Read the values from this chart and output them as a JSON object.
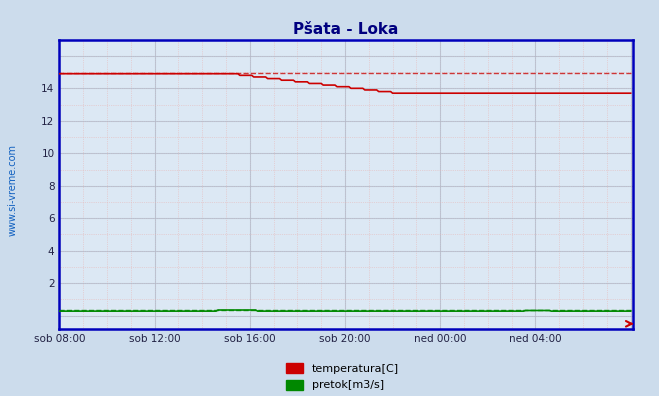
{
  "title": "Pšata - Loka",
  "title_color": "#000080",
  "bg_color": "#ccdcec",
  "plot_bg_color": "#dce8f4",
  "grid_color_v_minor": "#e8b8b8",
  "grid_color_h_minor": "#e8b8b8",
  "grid_color_major": "#b0b8c8",
  "xlabel_ticks": [
    "sob 08:00",
    "sob 12:00",
    "sob 16:00",
    "sob 20:00",
    "ned 00:00",
    "ned 04:00"
  ],
  "ytick_vals": [
    0,
    2,
    4,
    6,
    8,
    10,
    12,
    14
  ],
  "ytick_labels": [
    "",
    "2",
    "4",
    "6",
    "8",
    "10",
    "12",
    "14"
  ],
  "ylim": [
    -0.8,
    17.0
  ],
  "xlim": [
    0,
    289
  ],
  "watermark": "www.si-vreme.com",
  "watermark_color": "#1060c0",
  "temp_color": "#cc0000",
  "flow_color": "#008800",
  "dashed_color_temp": "#cc2222",
  "dashed_color_flow": "#008800",
  "temp_max_ref": 14.95,
  "flow_ref": 0.35,
  "legend_temp": "temperatura[C]",
  "legend_flow": "pretok[m3/s]",
  "border_color": "#0000bb",
  "tick_label_color": "#222244"
}
